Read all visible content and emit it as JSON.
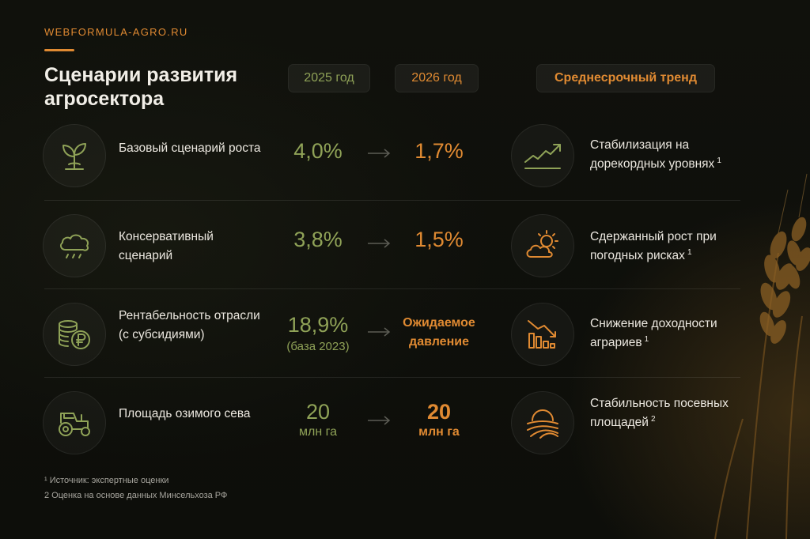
{
  "site": "WEBFORMULA-AGRO.RU",
  "title": "Сценарии развития агросектора",
  "headers": {
    "y2025": "2025 год",
    "y2026": "2026 год",
    "trend": "Среднесрочный тренд"
  },
  "rows": [
    {
      "label": "Базовый сценарий роста",
      "v2025": "4,0%",
      "v2025_sub": "",
      "v2026": "1,7%",
      "trend": "Стабилизация на дорекордных уровнях",
      "note": "1",
      "icon": "sprout-icon",
      "trend_icon": "trend-up-icon"
    },
    {
      "label": "Консервативный сценарий",
      "v2025": "3,8%",
      "v2025_sub": "",
      "v2026": "1,5%",
      "trend": "Сдержанный рост при погодных рисках",
      "note": "1",
      "icon": "rain-cloud-icon",
      "trend_icon": "sun-cloud-icon"
    },
    {
      "label": "Рентабельность отрасли (с субсидиями)",
      "v2025": "18,9%",
      "v2025_sub": "(база 2023)",
      "v2026": "Ожидаемое давление",
      "trend": "Снижение доходности аграриев",
      "note": "1",
      "icon": "coins-ruble-icon",
      "trend_icon": "bar-decline-icon"
    },
    {
      "label": "Площадь озимого сева",
      "v2025": "20",
      "v2025_sub": "млн га",
      "v2026": "20",
      "v2026_sub": "млн га",
      "trend": "Стабильность посевных площадей",
      "note": "2",
      "icon": "tractor-icon",
      "trend_icon": "field-sunrise-icon"
    }
  ],
  "footnotes": [
    "¹ Источник: экспертные оценки",
    "2 Оценка на основе данных Минсельхоза РФ"
  ],
  "colors": {
    "accent_orange": "#e08a32",
    "accent_green": "#8fa257",
    "background": "#0f100c"
  }
}
